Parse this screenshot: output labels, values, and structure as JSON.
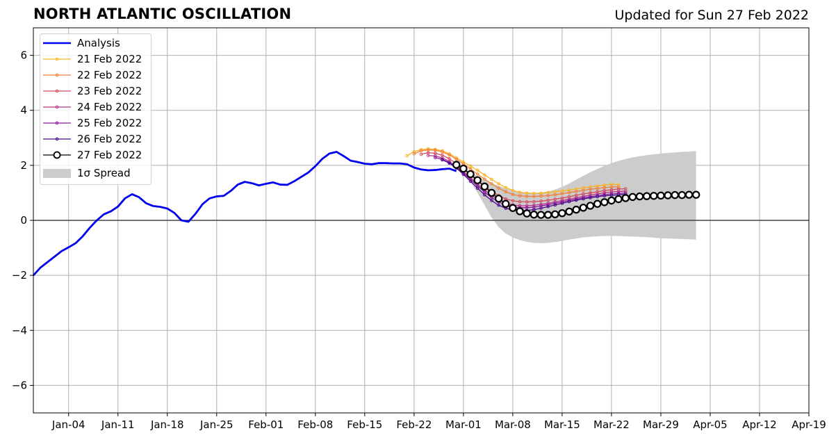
{
  "header": {
    "title": "NORTH ATLANTIC OSCILLATION",
    "updated": "Updated for Sun 27 Feb 2022"
  },
  "chart_data": {
    "type": "line",
    "title": "NORTH ATLANTIC OSCILLATION",
    "subtitle": "Updated for Sun 27 Feb 2022",
    "xlabel": "",
    "ylabel": "",
    "xlim": [
      "2021-12-30",
      "2022-04-19"
    ],
    "ylim": [
      -7,
      7
    ],
    "x_ticks": [
      "Jan-04",
      "Jan-11",
      "Jan-18",
      "Jan-25",
      "Feb-01",
      "Feb-08",
      "Feb-15",
      "Feb-22",
      "Mar-01",
      "Mar-08",
      "Mar-15",
      "Mar-22",
      "Mar-29",
      "Apr-05",
      "Apr-12",
      "Apr-19"
    ],
    "y_ticks": [
      "−6",
      "−4",
      "−2",
      "0",
      "2",
      "4",
      "6"
    ],
    "grid": true,
    "legend_position": "upper-left",
    "analysis": {
      "name": "Analysis",
      "color": "#0000ee",
      "start": "2021-12-30",
      "values": [
        -2.0,
        -1.72,
        -1.52,
        -1.32,
        -1.12,
        -0.98,
        -0.83,
        -0.58,
        -0.27,
        0.0,
        0.22,
        0.33,
        0.5,
        0.8,
        0.95,
        0.84,
        0.62,
        0.52,
        0.49,
        0.43,
        0.27,
        0.0,
        -0.05,
        0.24,
        0.59,
        0.8,
        0.87,
        0.89,
        1.07,
        1.3,
        1.4,
        1.35,
        1.27,
        1.33,
        1.38,
        1.3,
        1.29,
        1.42,
        1.58,
        1.74,
        1.97,
        2.24,
        2.43,
        2.49,
        2.34,
        2.17,
        2.12,
        2.06,
        2.04,
        2.08,
        2.08,
        2.07,
        2.07,
        2.04,
        1.92,
        1.85,
        1.82,
        1.83,
        1.86,
        1.88,
        1.79
      ]
    },
    "forecasts": [
      {
        "name": "21 Feb 2022",
        "color": "#f9b325",
        "start": "2022-02-21",
        "values": [
          2.35,
          2.5,
          2.57,
          2.6,
          2.58,
          2.53,
          2.42,
          2.27,
          2.12,
          1.98,
          1.82,
          1.65,
          1.49,
          1.33,
          1.19,
          1.09,
          1.02,
          0.99,
          0.98,
          0.99,
          1.01,
          1.04,
          1.07,
          1.1,
          1.14,
          1.18,
          1.22,
          1.25,
          1.28,
          1.31,
          1.3
        ]
      },
      {
        "name": "22 Feb 2022",
        "color": "#f17f39",
        "start": "2022-02-22",
        "values": [
          2.42,
          2.53,
          2.56,
          2.55,
          2.49,
          2.38,
          2.22,
          2.05,
          1.87,
          1.68,
          1.5,
          1.33,
          1.17,
          1.04,
          0.94,
          0.89,
          0.87,
          0.87,
          0.88,
          0.9,
          0.93,
          0.97,
          1.01,
          1.05,
          1.09,
          1.13,
          1.16,
          1.19,
          1.21,
          1.22
        ]
      },
      {
        "name": "23 Feb 2022",
        "color": "#d44e5d",
        "start": "2022-02-23",
        "values": [
          2.4,
          2.46,
          2.44,
          2.37,
          2.24,
          2.06,
          1.86,
          1.65,
          1.44,
          1.24,
          1.06,
          0.9,
          0.78,
          0.71,
          0.68,
          0.67,
          0.68,
          0.7,
          0.73,
          0.77,
          0.81,
          0.86,
          0.91,
          0.96,
          1.0,
          1.04,
          1.08,
          1.11,
          1.14,
          1.15
        ]
      },
      {
        "name": "24 Feb 2022",
        "color": "#b83689",
        "start": "2022-02-24",
        "values": [
          2.36,
          2.34,
          2.27,
          2.14,
          1.96,
          1.76,
          1.53,
          1.31,
          1.1,
          0.91,
          0.75,
          0.63,
          0.56,
          0.53,
          0.53,
          0.55,
          0.58,
          0.62,
          0.67,
          0.72,
          0.77,
          0.82,
          0.87,
          0.92,
          0.96,
          1.0,
          1.03,
          1.05,
          1.06
        ]
      },
      {
        "name": "25 Feb 2022",
        "color": "#8d1c9c",
        "start": "2022-02-25",
        "values": [
          2.28,
          2.22,
          2.1,
          1.93,
          1.71,
          1.48,
          1.25,
          1.03,
          0.83,
          0.67,
          0.55,
          0.49,
          0.46,
          0.46,
          0.48,
          0.52,
          0.57,
          0.62,
          0.67,
          0.72,
          0.77,
          0.82,
          0.86,
          0.9,
          0.93,
          0.96,
          0.98,
          0.99
        ]
      },
      {
        "name": "26 Feb 2022",
        "color": "#4e0a8c",
        "start": "2022-02-26",
        "values": [
          2.2,
          2.08,
          1.9,
          1.67,
          1.42,
          1.17,
          0.93,
          0.72,
          0.55,
          0.44,
          0.38,
          0.35,
          0.36,
          0.39,
          0.44,
          0.5,
          0.56,
          0.62,
          0.68,
          0.73,
          0.78,
          0.82,
          0.86,
          0.89,
          0.91,
          0.93,
          0.94
        ]
      },
      {
        "name": "27 Feb 2022",
        "color": "#000000",
        "start": "2022-02-28",
        "values": [
          2.02,
          1.88,
          1.68,
          1.46,
          1.23,
          1.0,
          0.79,
          0.6,
          0.45,
          0.33,
          0.25,
          0.21,
          0.2,
          0.2,
          0.22,
          0.26,
          0.32,
          0.39,
          0.46,
          0.53,
          0.6,
          0.66,
          0.72,
          0.77,
          0.81,
          0.85,
          0.87,
          0.88,
          0.89,
          0.9,
          0.91,
          0.92,
          0.92,
          0.93,
          0.93
        ]
      }
    ],
    "spread": {
      "name": "1σ Spread",
      "color": "#cccccc",
      "start": "2022-02-28",
      "upper": [
        2.02,
        1.9,
        1.75,
        1.6,
        1.47,
        1.35,
        1.25,
        1.16,
        1.09,
        1.04,
        1.01,
        1.0,
        1.01,
        1.05,
        1.12,
        1.22,
        1.34,
        1.48,
        1.62,
        1.75,
        1.87,
        1.98,
        2.08,
        2.16,
        2.23,
        2.29,
        2.33,
        2.37,
        2.4,
        2.43,
        2.45,
        2.47,
        2.49,
        2.5,
        2.52
      ],
      "lower": [
        2.02,
        1.75,
        1.4,
        1.0,
        0.55,
        0.1,
        -0.25,
        -0.48,
        -0.62,
        -0.72,
        -0.78,
        -0.82,
        -0.83,
        -0.82,
        -0.79,
        -0.75,
        -0.7,
        -0.66,
        -0.62,
        -0.6,
        -0.58,
        -0.57,
        -0.57,
        -0.57,
        -0.58,
        -0.59,
        -0.6,
        -0.61,
        -0.63,
        -0.65,
        -0.66,
        -0.67,
        -0.68,
        -0.69,
        -0.7
      ]
    }
  }
}
